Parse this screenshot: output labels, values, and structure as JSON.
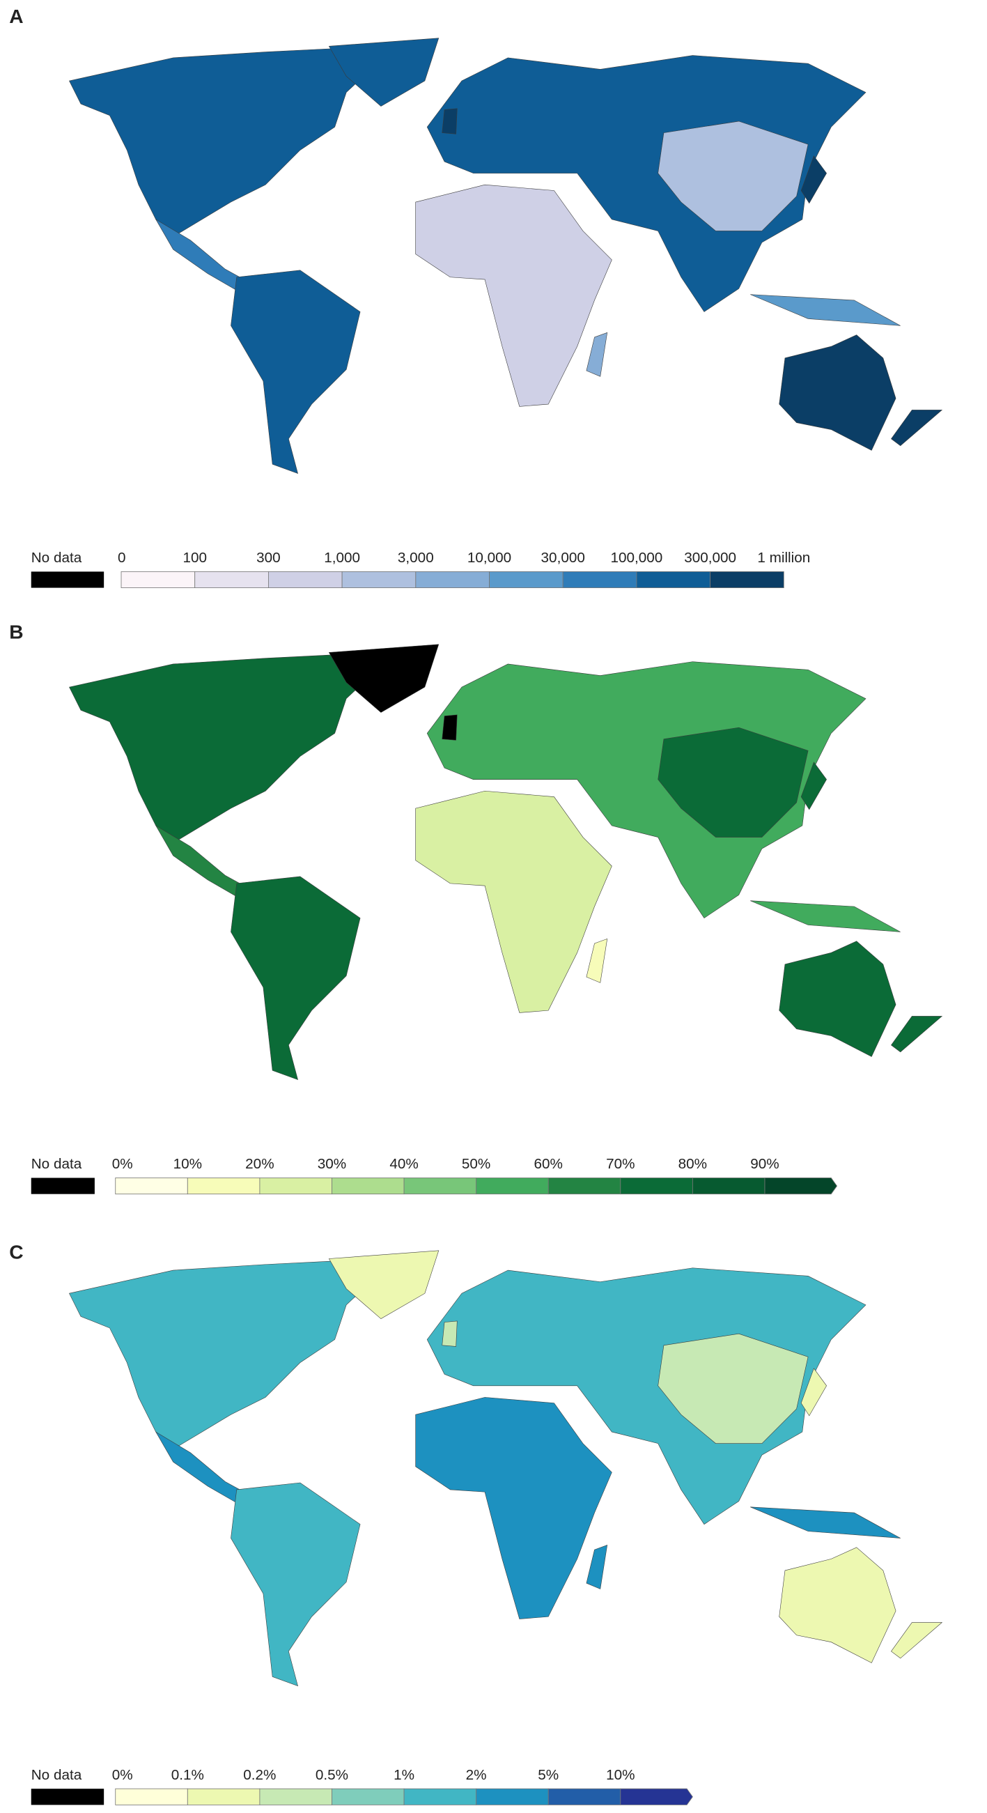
{
  "panels": [
    {
      "label": "A",
      "legend": {
        "no_data": "No data",
        "ticks": [
          "0",
          "100",
          "300",
          "1,000",
          "3,000",
          "10,000",
          "30,000",
          "100,000",
          "300,000",
          "1 million"
        ],
        "colors": [
          "#fbf4f8",
          "#e6e2ef",
          "#cfd0e6",
          "#aec0df",
          "#86add6",
          "#5a9acb",
          "#2f7cb8",
          "#0f5d96",
          "#0b3e66"
        ],
        "arrow": false
      }
    },
    {
      "label": "B",
      "legend": {
        "no_data": "No data",
        "ticks": [
          "0%",
          "10%",
          "20%",
          "30%",
          "40%",
          "50%",
          "60%",
          "70%",
          "80%",
          "90%"
        ],
        "colors": [
          "#ffffe5",
          "#f7fcb9",
          "#d9f0a3",
          "#addd8e",
          "#78c679",
          "#41ab5d",
          "#238443",
          "#0b6b37",
          "#075a30",
          "#044529"
        ],
        "arrow": true
      }
    },
    {
      "label": "C",
      "legend": {
        "no_data": "No data",
        "ticks": [
          "0%",
          "0.1%",
          "0.2%",
          "0.5%",
          "1%",
          "2%",
          "5%",
          "10%"
        ],
        "colors": [
          "#ffffd9",
          "#edf8b1",
          "#c7e9b4",
          "#7fcdbb",
          "#41b6c4",
          "#1d91c0",
          "#225ea8",
          "#253494"
        ],
        "arrow": true
      }
    }
  ]
}
